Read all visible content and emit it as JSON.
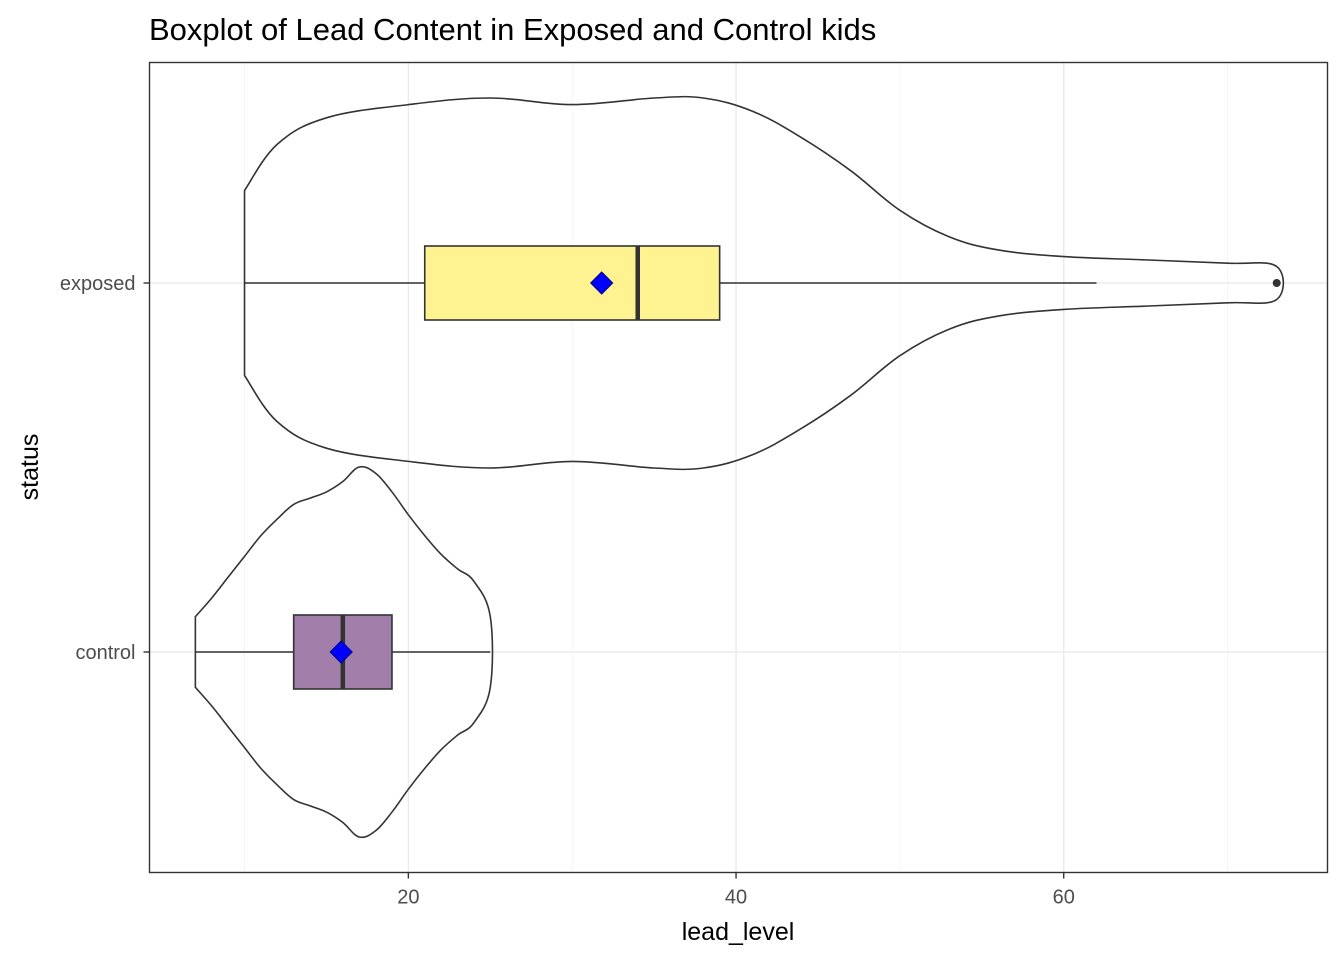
{
  "chart_data": {
    "type": "boxplot",
    "title": "Boxplot of Lead Content in Exposed and Control kids",
    "xlabel": "lead_level",
    "ylabel": "status",
    "xlim": [
      4.2,
      76.1
    ],
    "x_ticks": [
      20,
      40,
      60
    ],
    "categories": [
      "control",
      "exposed"
    ],
    "grid": true,
    "legend": "none",
    "groups": [
      {
        "category": "control",
        "fill": "#a27fab",
        "min": 7,
        "q1": 13,
        "median": 16,
        "q3": 19,
        "max": 25,
        "mean": 15.9,
        "outliers": [],
        "density": [
          [
            7,
            0.17
          ],
          [
            8,
            0.26
          ],
          [
            9,
            0.36
          ],
          [
            10,
            0.46
          ],
          [
            11,
            0.56
          ],
          [
            12,
            0.64
          ],
          [
            13,
            0.71
          ],
          [
            14,
            0.74
          ],
          [
            15,
            0.77
          ],
          [
            16,
            0.82
          ],
          [
            17,
            0.89
          ],
          [
            18,
            0.86
          ],
          [
            19,
            0.77
          ],
          [
            20,
            0.66
          ],
          [
            21,
            0.56
          ],
          [
            22,
            0.47
          ],
          [
            23,
            0.4
          ],
          [
            24,
            0.34
          ],
          [
            25,
            0.17
          ]
        ]
      },
      {
        "category": "exposed",
        "fill": "#fff291",
        "min": 10,
        "q1": 21,
        "median": 34,
        "q3": 39,
        "max": 62,
        "mean": 31.8,
        "outliers": [
          73
        ],
        "density": [
          [
            10,
            0.14
          ],
          [
            12,
            0.21
          ],
          [
            15,
            0.25
          ],
          [
            20,
            0.27
          ],
          [
            25,
            0.28
          ],
          [
            30,
            0.27
          ],
          [
            35,
            0.28
          ],
          [
            38,
            0.28
          ],
          [
            41,
            0.26
          ],
          [
            44,
            0.22
          ],
          [
            47,
            0.17
          ],
          [
            50,
            0.11
          ],
          [
            53,
            0.07
          ],
          [
            56,
            0.05
          ],
          [
            60,
            0.04
          ],
          [
            65,
            0.035
          ],
          [
            70,
            0.03
          ],
          [
            73,
            0.025
          ]
        ]
      }
    ]
  }
}
